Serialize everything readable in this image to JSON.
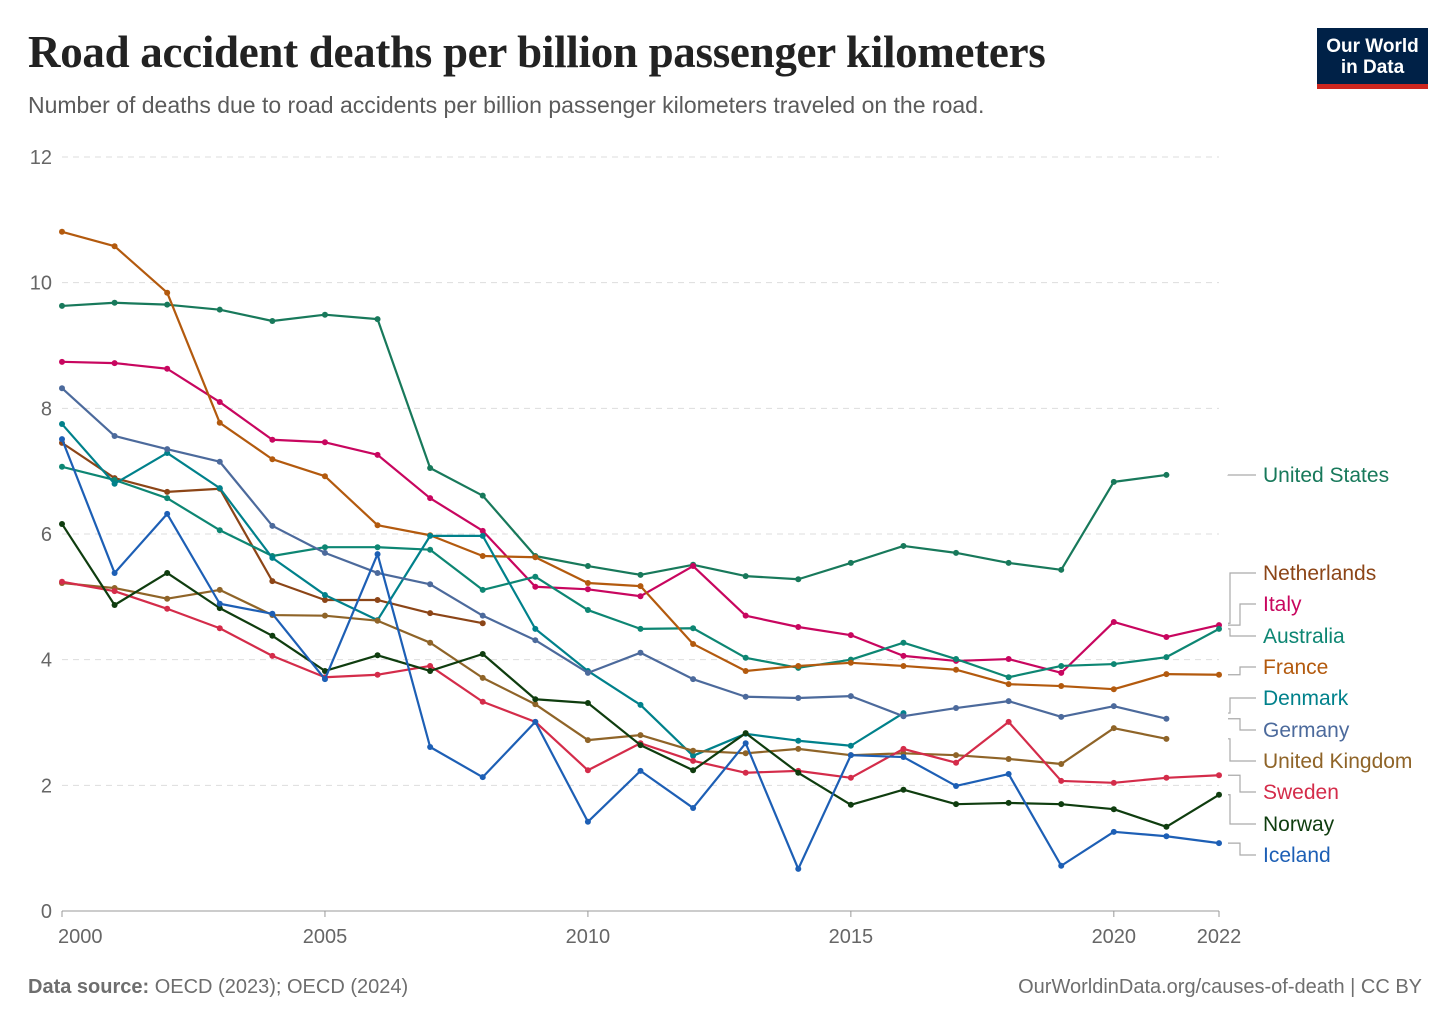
{
  "title": "Road accident deaths per billion passenger kilometers",
  "subtitle": "Number of deaths due to road accidents per billion passenger kilometers traveled on the road.",
  "logo": {
    "line1": "Our World",
    "line2": "in Data"
  },
  "footer": {
    "source_label": "Data source:",
    "source_text": "OECD (2023); OECD (2024)",
    "right_text": "OurWorldinData.org/causes-of-death | CC BY"
  },
  "chart_data": {
    "type": "line",
    "title": "Road accident deaths per billion passenger kilometers",
    "xlabel": "",
    "ylabel": "",
    "xlim": [
      2000,
      2022
    ],
    "ylim": [
      0,
      12
    ],
    "x_ticks": [
      2000,
      2005,
      2010,
      2015,
      2020,
      2022
    ],
    "y_ticks": [
      0,
      2,
      4,
      6,
      8,
      10,
      12
    ],
    "grid": "horizontal dashed",
    "legend": "right (end labels)",
    "series": [
      {
        "name": "United States",
        "color": "#18795b",
        "start": 2000,
        "values": [
          9.63,
          9.68,
          9.65,
          9.57,
          9.39,
          9.49,
          9.42,
          7.05,
          6.61,
          5.65,
          5.49,
          5.35,
          5.51,
          5.33,
          5.28,
          5.54,
          5.81,
          5.7,
          5.54,
          5.43,
          6.83,
          6.94
        ]
      },
      {
        "name": "Netherlands",
        "color": "#8c4517",
        "start": 2000,
        "values": [
          7.45,
          6.89,
          6.67,
          6.72,
          5.25,
          4.95,
          4.95,
          4.74,
          4.58
        ]
      },
      {
        "name": "Italy",
        "color": "#c8065f",
        "start": 2000,
        "values": [
          8.74,
          8.72,
          8.63,
          8.1,
          7.5,
          7.46,
          7.26,
          6.57,
          6.05,
          5.16,
          5.12,
          5.01,
          5.49,
          4.7,
          4.52,
          4.39,
          4.06,
          3.98,
          4.01,
          3.79,
          4.6,
          4.36,
          4.55
        ]
      },
      {
        "name": "Australia",
        "color": "#0d8673",
        "start": 2000,
        "values": [
          7.07,
          6.86,
          6.57,
          6.06,
          5.65,
          5.79,
          5.79,
          5.75,
          5.11,
          5.32,
          4.79,
          4.49,
          4.5,
          4.03,
          3.87,
          4.0,
          4.27,
          4.01,
          3.72,
          3.9,
          3.93,
          4.04,
          4.49
        ]
      },
      {
        "name": "France",
        "color": "#b35a0e",
        "start": 2000,
        "values": [
          10.81,
          10.58,
          9.84,
          7.77,
          7.19,
          6.92,
          6.14,
          5.98,
          5.65,
          5.63,
          5.22,
          5.17,
          4.25,
          3.82,
          3.9,
          3.95,
          3.9,
          3.84,
          3.61,
          3.58,
          3.53,
          3.77,
          3.76
        ]
      },
      {
        "name": "Denmark",
        "color": "#00818b",
        "start": 2000,
        "values": [
          7.75,
          6.8,
          7.29,
          6.73,
          5.62,
          5.03,
          4.63,
          5.97,
          5.97,
          4.49,
          3.82,
          3.28,
          2.47,
          2.82,
          2.71,
          2.63,
          3.15
        ]
      },
      {
        "name": "Germany",
        "color": "#4c6a9c",
        "start": 2000,
        "values": [
          8.32,
          7.56,
          7.35,
          7.15,
          6.13,
          5.7,
          5.38,
          5.2,
          4.7,
          4.31,
          3.79,
          4.11,
          3.69,
          3.41,
          3.39,
          3.42,
          3.1,
          3.23,
          3.34,
          3.09,
          3.26,
          3.06
        ]
      },
      {
        "name": "United Kingdom",
        "color": "#8f6428",
        "start": 2000,
        "values": [
          5.22,
          5.14,
          4.97,
          5.11,
          4.71,
          4.7,
          4.62,
          4.27,
          3.71,
          3.29,
          2.72,
          2.8,
          2.55,
          2.51,
          2.58,
          2.48,
          2.51,
          2.48,
          2.42,
          2.34,
          2.91,
          2.74
        ]
      },
      {
        "name": "Sweden",
        "color": "#d42c4a",
        "start": 2000,
        "values": [
          5.24,
          5.09,
          4.81,
          4.5,
          4.06,
          3.72,
          3.76,
          3.9,
          3.33,
          3.01,
          2.24,
          2.67,
          2.39,
          2.2,
          2.23,
          2.12,
          2.58,
          2.36,
          3.01,
          2.07,
          2.04,
          2.12,
          2.16
        ]
      },
      {
        "name": "Norway",
        "color": "#0f3d0f",
        "start": 2000,
        "values": [
          6.16,
          4.87,
          5.38,
          4.82,
          4.38,
          3.82,
          4.07,
          3.82,
          4.09,
          3.37,
          3.31,
          2.64,
          2.24,
          2.83,
          2.2,
          1.69,
          1.93,
          1.7,
          1.72,
          1.7,
          1.62,
          1.34,
          1.85
        ]
      },
      {
        "name": "Iceland",
        "color": "#1d5fb5",
        "start": 2000,
        "values": [
          7.51,
          5.38,
          6.32,
          4.89,
          4.73,
          3.69,
          5.68,
          2.61,
          2.13,
          3.01,
          1.42,
          2.23,
          1.64,
          2.67,
          0.67,
          2.48,
          2.45,
          1.99,
          2.18,
          0.72,
          1.26,
          1.19,
          1.08
        ]
      }
    ]
  }
}
